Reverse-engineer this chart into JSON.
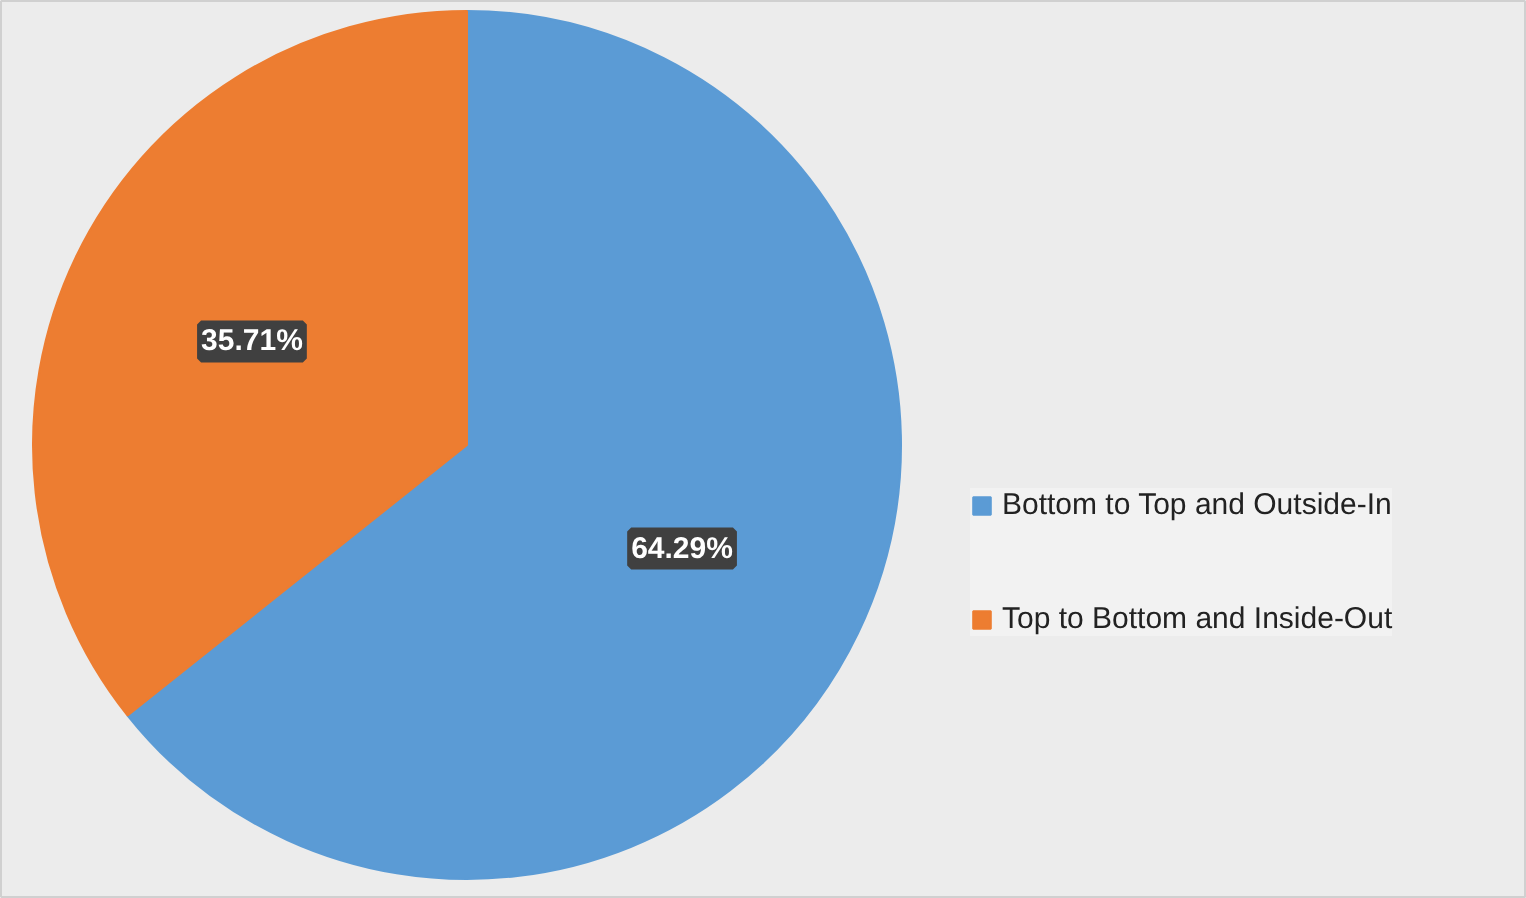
{
  "chart_data": {
    "type": "pie",
    "categories": [
      "Bottom to Top and Outside-In",
      "Top to Bottom and Inside-Out"
    ],
    "values": [
      64.29,
      35.71
    ],
    "colors": [
      "#5b9bd5",
      "#ed7d31"
    ],
    "value_labels": [
      "64.29%",
      "35.71%"
    ],
    "legend": "right"
  }
}
